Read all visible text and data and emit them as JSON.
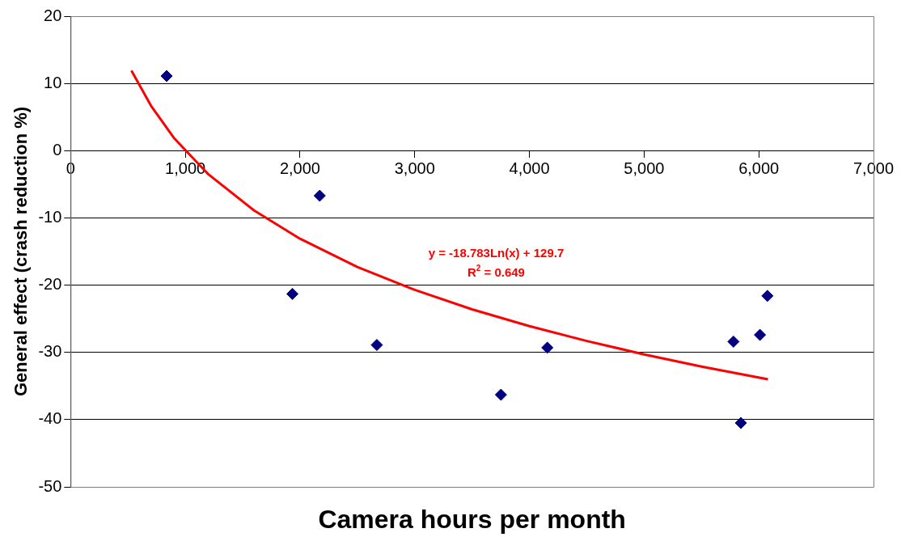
{
  "chart_data": {
    "type": "scatter",
    "xlabel": "Camera hours per month",
    "ylabel": "General effect (crash reduction %)",
    "xlim": [
      0,
      7000
    ],
    "xticks": [
      {
        "value": 0,
        "label": "0"
      },
      {
        "value": 1000,
        "label": "1,000"
      },
      {
        "value": 2000,
        "label": "2,000"
      },
      {
        "value": 3000,
        "label": "3,000"
      },
      {
        "value": 4000,
        "label": "4,000"
      },
      {
        "value": 5000,
        "label": "5,000"
      },
      {
        "value": 6000,
        "label": "6,000"
      },
      {
        "value": 7000,
        "label": "7,000"
      }
    ],
    "ylim": [
      -50,
      20
    ],
    "yticks": [
      -50,
      -40,
      -30,
      -20,
      -10,
      0,
      10,
      20
    ],
    "grid": "y",
    "legend": false,
    "marker": "diamond",
    "series": [
      {
        "color": "#000080",
        "x": [
          837,
          1934,
          2172,
          2670,
          3752,
          4156,
          5779,
          5844,
          6010,
          6075
        ],
        "values": [
          11.1,
          -21.3,
          -6.7,
          -28.9,
          -36.3,
          -29.3,
          -28.4,
          -40.5,
          -27.4,
          -21.6
        ]
      },
      {
        "type": "line",
        "color": "#ff0000",
        "line_style": "solid",
        "marker": "none",
        "x": [
          530,
          700,
          900,
          1200,
          1600,
          2000,
          2500,
          3000,
          3500,
          4000,
          4500,
          5000,
          5500,
          6080
        ],
        "values": [
          11.9,
          6.7,
          1.9,
          -3.5,
          -8.9,
          -13.1,
          -17.3,
          -20.7,
          -23.6,
          -26.1,
          -28.3,
          -30.3,
          -32.1,
          -34.0
        ]
      }
    ],
    "annotations": [
      "y = -18.783Ln(x) + 129.7",
      "R$^{2}$ = 0.649"
    ]
  }
}
